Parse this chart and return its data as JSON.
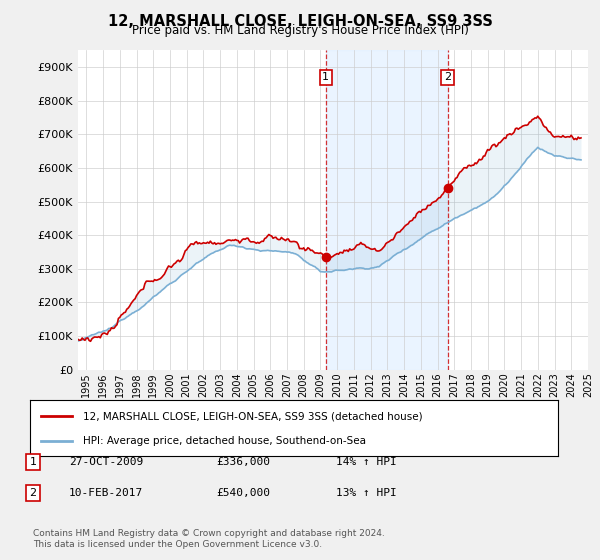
{
  "title": "12, MARSHALL CLOSE, LEIGH-ON-SEA, SS9 3SS",
  "subtitle": "Price paid vs. HM Land Registry's House Price Index (HPI)",
  "ylabel_ticks": [
    "£0",
    "£100K",
    "£200K",
    "£300K",
    "£400K",
    "£500K",
    "£600K",
    "£700K",
    "£800K",
    "£900K"
  ],
  "ytick_values": [
    0,
    100000,
    200000,
    300000,
    400000,
    500000,
    600000,
    700000,
    800000,
    900000
  ],
  "ylim": [
    0,
    950000
  ],
  "xlim_start": 1995.0,
  "xlim_end": 2025.5,
  "hpi_color": "#7bafd4",
  "price_color": "#cc0000",
  "shade_color": "#ddeeff",
  "marker1_x": 2009.82,
  "marker1_y": 336000,
  "marker1_label": "27-OCT-2009",
  "marker1_price": "£336,000",
  "marker1_hpi": "14% ↑ HPI",
  "marker2_x": 2017.11,
  "marker2_y": 540000,
  "marker2_label": "10-FEB-2017",
  "marker2_price": "£540,000",
  "marker2_hpi": "13% ↑ HPI",
  "legend_line1": "12, MARSHALL CLOSE, LEIGH-ON-SEA, SS9 3SS (detached house)",
  "legend_line2": "HPI: Average price, detached house, Southend-on-Sea",
  "footnote": "Contains HM Land Registry data © Crown copyright and database right 2024.\nThis data is licensed under the Open Government Licence v3.0.",
  "background_color": "#f0f0f0",
  "plot_bg_color": "#ffffff",
  "grid_color": "#cccccc"
}
